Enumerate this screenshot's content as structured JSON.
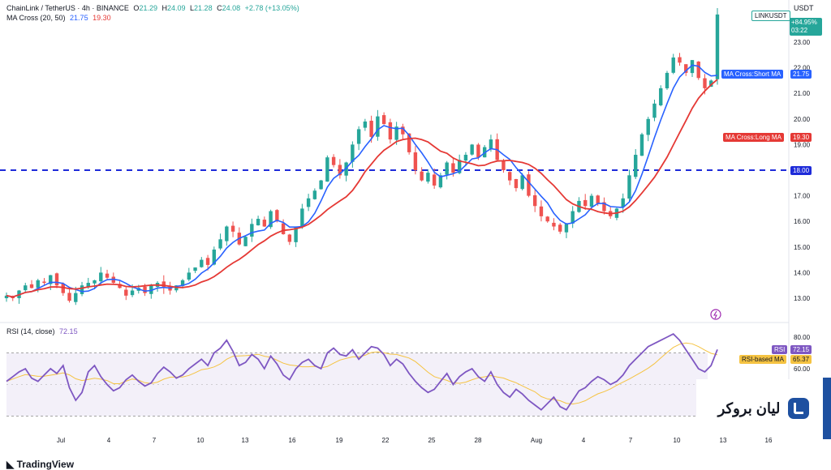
{
  "header": {
    "symbol": "ChainLink / TetherUS · 4h · BINANCE",
    "o_label": "O",
    "o": "21.29",
    "h_label": "H",
    "h": "24.09",
    "l_label": "L",
    "l": "21.28",
    "c_label": "C",
    "c": "24.08",
    "change": "+2.78 (+13.05%)",
    "ma_title": "MA Cross (20, 50)",
    "ma_short": "21.75",
    "ma_long": "19.30",
    "currency": "USDT"
  },
  "price_tags": {
    "symbol_tag": "LINKUSDT",
    "last_price": "+84.95%",
    "countdown": "03:22",
    "short_ma_label": "MA Cross:Short MA",
    "short_ma_value": "21.75",
    "long_ma_label": "MA Cross:Long MA",
    "long_ma_value": "19.30",
    "hline_value": "18.00"
  },
  "rsi_header": {
    "title": "RSI (14, close)",
    "rsi": "72.15",
    "rsi_ma": "65.37"
  },
  "rsi_tags": {
    "rsi_label": "RSI",
    "rsi_value": "72.15",
    "ma_label": "RSI-based MA",
    "ma_value": "65.37"
  },
  "brand": {
    "text": "لیان بروکر"
  },
  "footer": {
    "logo_text": "TradingView"
  },
  "colors": {
    "up": "#26a69a",
    "down": "#ef5350",
    "short_ma": "#2962ff",
    "long_ma": "#e53935",
    "hline": "#1e2bd9",
    "rsi": "#7e57c2",
    "rsi_ma": "#f5c342"
  },
  "chart_data": {
    "type": "candlestick",
    "price_axis_ticks": [
      "23.00",
      "22.00",
      "21.00",
      "20.00",
      "19.00",
      "18.00",
      "17.00",
      "16.00",
      "15.00",
      "14.00",
      "13.00"
    ],
    "price_range": [
      12.6,
      24.1
    ],
    "time_axis_ticks": [
      "Jul",
      "4",
      "7",
      "10",
      "13",
      "16",
      "19",
      "22",
      "25",
      "28",
      "Aug",
      "4",
      "7",
      "10",
      "13",
      "16"
    ],
    "horizontal_line": 18.0,
    "close_path": [
      13.1,
      13.0,
      13.3,
      13.5,
      13.4,
      13.7,
      13.6,
      13.9,
      13.5,
      13.2,
      12.9,
      13.2,
      13.5,
      13.6,
      13.7,
      14.0,
      13.8,
      13.6,
      13.4,
      13.1,
      13.3,
      13.4,
      13.2,
      13.5,
      13.6,
      13.4,
      13.3,
      13.5,
      13.7,
      14.0,
      14.2,
      14.5,
      14.3,
      14.9,
      15.3,
      15.8,
      15.6,
      15.1,
      15.4,
      15.9,
      16.1,
      15.8,
      16.4,
      16.0,
      15.5,
      15.2,
      15.8,
      16.5,
      16.9,
      17.2,
      17.6,
      18.5,
      18.2,
      17.8,
      18.3,
      19.0,
      19.6,
      19.9,
      19.3,
      20.1,
      19.8,
      19.2,
      19.7,
      19.4,
      18.7,
      18.0,
      17.6,
      17.9,
      17.4,
      17.8,
      18.3,
      17.9,
      18.4,
      18.6,
      19.0,
      18.5,
      18.9,
      19.2,
      18.4,
      18.0,
      17.6,
      17.3,
      17.8,
      17.0,
      16.6,
      16.2,
      16.0,
      15.8,
      15.6,
      15.9,
      16.4,
      16.8,
      16.6,
      17.0,
      16.7,
      16.4,
      16.2,
      16.5,
      16.9,
      17.8,
      18.6,
      19.4,
      20.0,
      20.6,
      21.2,
      21.8,
      22.4,
      22.2,
      21.8,
      22.3,
      21.6,
      21.2,
      21.5,
      24.08
    ],
    "ma_short_end": 21.75,
    "ma_long_end": 19.3,
    "rsi_axis_ticks": [
      "80.00",
      "60.00"
    ],
    "rsi_range": [
      25,
      85
    ],
    "rsi_levels": [
      70,
      30
    ],
    "rsi_path": [
      52,
      55,
      58,
      60,
      54,
      52,
      56,
      60,
      57,
      62,
      48,
      40,
      45,
      58,
      62,
      55,
      50,
      46,
      48,
      53,
      56,
      52,
      49,
      51,
      57,
      61,
      58,
      54,
      56,
      60,
      63,
      66,
      62,
      70,
      73,
      78,
      71,
      62,
      64,
      69,
      66,
      60,
      68,
      63,
      56,
      53,
      60,
      64,
      66,
      62,
      60,
      70,
      73,
      69,
      68,
      72,
      66,
      70,
      74,
      73,
      69,
      62,
      66,
      63,
      57,
      52,
      48,
      45,
      47,
      52,
      57,
      50,
      55,
      58,
      60,
      55,
      52,
      58,
      50,
      45,
      42,
      47,
      44,
      40,
      37,
      34,
      38,
      42,
      36,
      34,
      40,
      46,
      48,
      52,
      55,
      53,
      50,
      52,
      56,
      62,
      66,
      70,
      74,
      76,
      78,
      80,
      82,
      78,
      72,
      66,
      60,
      58,
      62,
      72.15
    ]
  }
}
